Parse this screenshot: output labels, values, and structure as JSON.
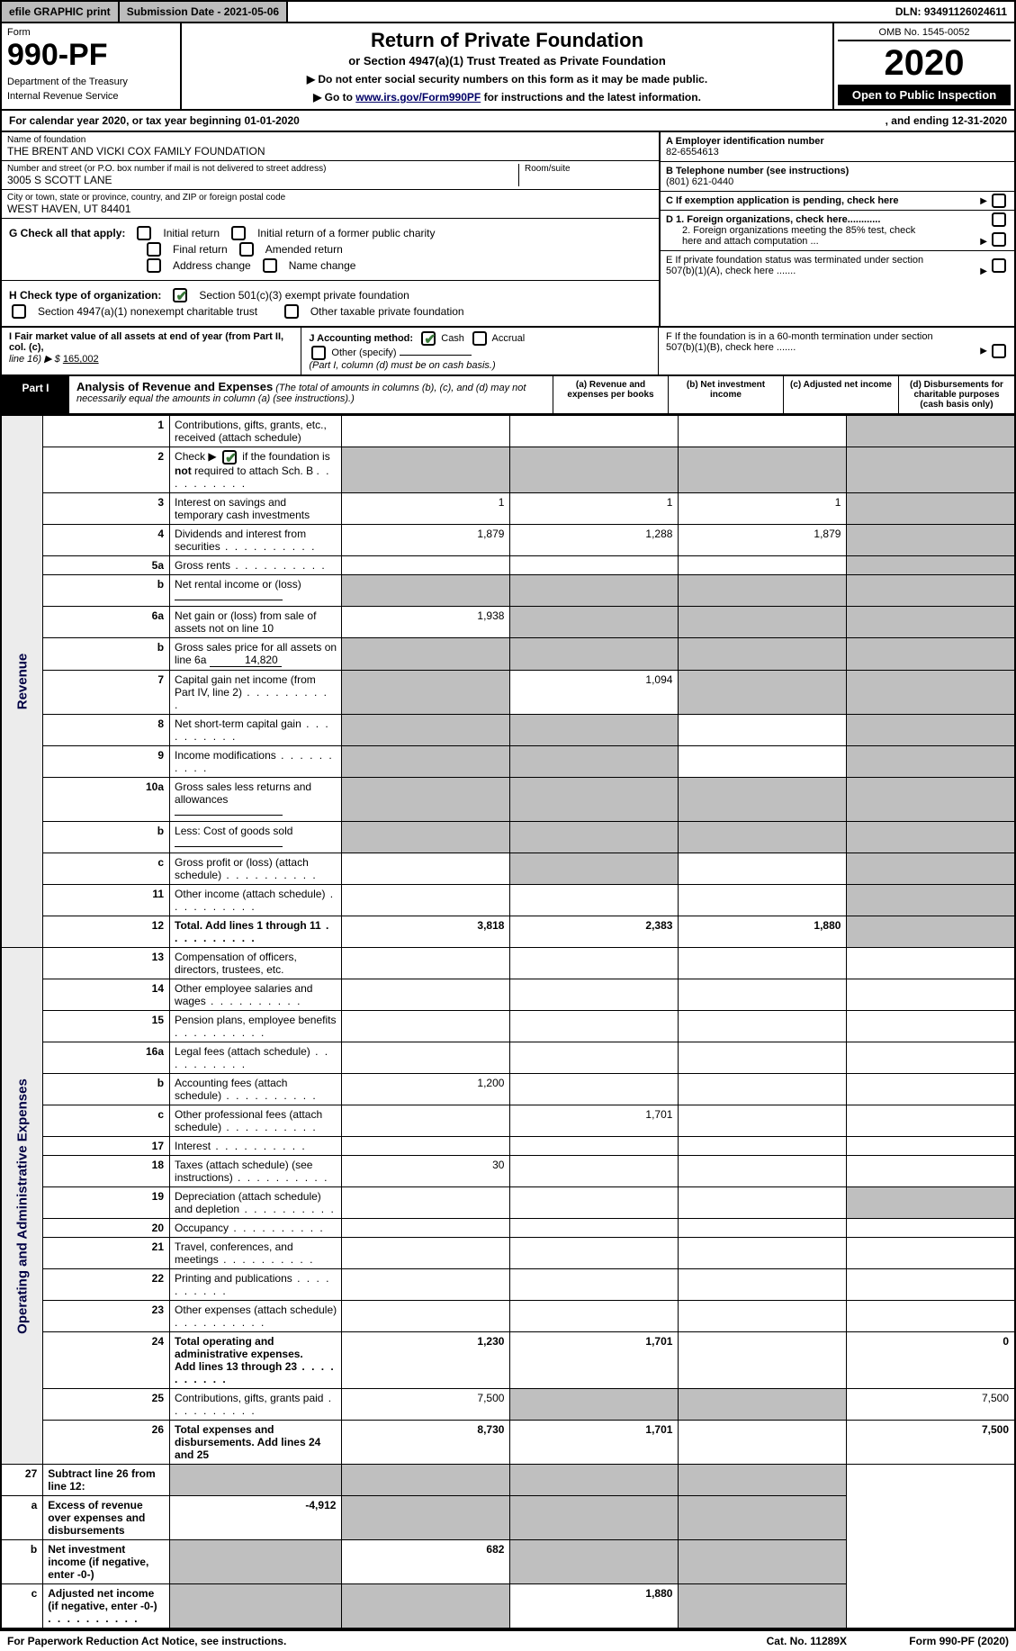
{
  "topbar": {
    "efile": "efile GRAPHIC print",
    "submission_label": "Submission Date - 2021-05-06",
    "dln": "DLN: 93491126024611"
  },
  "header": {
    "form_label": "Form",
    "form_number": "990-PF",
    "dept1": "Department of the Treasury",
    "dept2": "Internal Revenue Service",
    "title": "Return of Private Foundation",
    "subtitle": "or Section 4947(a)(1) Trust Treated as Private Foundation",
    "note1": "▶ Do not enter social security numbers on this form as it may be made public.",
    "note2_pre": "▶ Go to ",
    "note2_link": "www.irs.gov/Form990PF",
    "note2_post": " for instructions and the latest information.",
    "omb": "OMB No. 1545-0052",
    "year": "2020",
    "open": "Open to Public Inspection"
  },
  "calendar": {
    "text_l": "For calendar year 2020, or tax year beginning 01-01-2020",
    "text_r": ", and ending 12-31-2020"
  },
  "foundation": {
    "name_label": "Name of foundation",
    "name": "THE BRENT AND VICKI COX FAMILY FOUNDATION",
    "addr_label": "Number and street (or P.O. box number if mail is not delivered to street address)",
    "addr": "3005 S SCOTT LANE",
    "room_label": "Room/suite",
    "city_label": "City or town, state or province, country, and ZIP or foreign postal code",
    "city": "WEST HAVEN, UT  84401"
  },
  "right_box": {
    "A_label": "A Employer identification number",
    "A_val": "82-6554613",
    "B_label": "B Telephone number (see instructions)",
    "B_val": "(801) 621-0440",
    "C_label": "C If exemption application is pending, check here",
    "D1_label": "D 1. Foreign organizations, check here............",
    "D2_label": "2. Foreign organizations meeting the 85% test, check here and attach computation ...",
    "E_label": "E  If private foundation status was terminated under section 507(b)(1)(A), check here .......",
    "F_label": "F  If the foundation is in a 60-month termination under section 507(b)(1)(B), check here .......",
    "arrow": "▶"
  },
  "G": {
    "label": "G Check all that apply:",
    "opts": [
      "Initial return",
      "Initial return of a former public charity",
      "Final return",
      "Amended return",
      "Address change",
      "Name change"
    ]
  },
  "H": {
    "label": "H Check type of organization:",
    "opt1": "Section 501(c)(3) exempt private foundation",
    "opt2": "Section 4947(a)(1) nonexempt charitable trust",
    "opt3": "Other taxable private foundation"
  },
  "I": {
    "label": "I Fair market value of all assets at end of year (from Part II, col. (c),",
    "line16": "line 16) ▶ $",
    "amount": "165,002"
  },
  "J": {
    "label": "J Accounting method:",
    "cash": "Cash",
    "accrual": "Accrual",
    "other": "Other (specify)",
    "note": "(Part I, column (d) must be on cash basis.)"
  },
  "part1": {
    "label": "Part I",
    "title": "Analysis of Revenue and Expenses",
    "note": "(The total of amounts in columns (b), (c), and (d) may not necessarily equal the amounts in column (a) (see instructions).)",
    "col_a": "(a)   Revenue and expenses per books",
    "col_b": "(b)   Net investment income",
    "col_c": "(c)   Adjusted net income",
    "col_d": "(d)  Disbursements for charitable purposes (cash basis only)"
  },
  "side_labels": {
    "revenue": "Revenue",
    "expenses": "Operating and Administrative Expenses"
  },
  "rows": [
    {
      "n": "1",
      "d": "Contributions, gifts, grants, etc., received (attach schedule)",
      "a": "",
      "b": "",
      "c": "",
      "g": [
        false,
        false,
        false,
        true
      ]
    },
    {
      "n": "2",
      "d": "Check ▶ ☑ if the foundation is not required to attach Sch. B",
      "dots": true,
      "a": "",
      "b": "",
      "c": "",
      "g": [
        true,
        true,
        true,
        true
      ],
      "check": true
    },
    {
      "n": "3",
      "d": "Interest on savings and temporary cash investments",
      "a": "1",
      "b": "1",
      "c": "1",
      "g": [
        false,
        false,
        false,
        true
      ]
    },
    {
      "n": "4",
      "d": "Dividends and interest from securities",
      "dots": true,
      "a": "1,879",
      "b": "1,288",
      "c": "1,879",
      "g": [
        false,
        false,
        false,
        true
      ]
    },
    {
      "n": "5a",
      "d": "Gross rents",
      "dots": true,
      "a": "",
      "b": "",
      "c": "",
      "g": [
        false,
        false,
        false,
        true
      ]
    },
    {
      "n": "b",
      "d": "Net rental income or (loss)",
      "blank": true,
      "a": "",
      "b": "",
      "c": "",
      "g": [
        true,
        true,
        true,
        true
      ]
    },
    {
      "n": "6a",
      "d": "Net gain or (loss) from sale of assets not on line 10",
      "a": "1,938",
      "b": "",
      "c": "",
      "g": [
        false,
        true,
        true,
        true
      ]
    },
    {
      "n": "b",
      "d": "Gross sales price for all assets on line 6a",
      "blankval": "14,820",
      "a": "",
      "b": "",
      "c": "",
      "g": [
        true,
        true,
        true,
        true
      ]
    },
    {
      "n": "7",
      "d": "Capital gain net income (from Part IV, line 2)",
      "dots": true,
      "a": "",
      "b": "1,094",
      "c": "",
      "g": [
        true,
        false,
        true,
        true
      ]
    },
    {
      "n": "8",
      "d": "Net short-term capital gain",
      "dots": true,
      "a": "",
      "b": "",
      "c": "",
      "g": [
        true,
        true,
        false,
        true
      ]
    },
    {
      "n": "9",
      "d": "Income modifications",
      "dots": true,
      "a": "",
      "b": "",
      "c": "",
      "g": [
        true,
        true,
        false,
        true
      ]
    },
    {
      "n": "10a",
      "d": "Gross sales less returns and allowances",
      "blank": true,
      "a": "",
      "b": "",
      "c": "",
      "g": [
        true,
        true,
        true,
        true
      ]
    },
    {
      "n": "b",
      "d": "Less: Cost of goods sold",
      "dots": true,
      "blank": true,
      "a": "",
      "b": "",
      "c": "",
      "g": [
        true,
        true,
        true,
        true
      ]
    },
    {
      "n": "c",
      "d": "Gross profit or (loss) (attach schedule)",
      "dots": true,
      "a": "",
      "b": "",
      "c": "",
      "g": [
        false,
        true,
        false,
        true
      ]
    },
    {
      "n": "11",
      "d": "Other income (attach schedule)",
      "dots": true,
      "a": "",
      "b": "",
      "c": "",
      "g": [
        false,
        false,
        false,
        true
      ]
    },
    {
      "n": "12",
      "d": "Total. Add lines 1 through 11",
      "dots": true,
      "a": "3,818",
      "b": "2,383",
      "c": "1,880",
      "g": [
        false,
        false,
        false,
        true
      ],
      "bold": true
    }
  ],
  "exp_rows": [
    {
      "n": "13",
      "d": "Compensation of officers, directors, trustees, etc.",
      "a": "",
      "b": "",
      "c": "",
      "dd": ""
    },
    {
      "n": "14",
      "d": "Other employee salaries and wages",
      "dots": true,
      "a": "",
      "b": "",
      "c": "",
      "dd": ""
    },
    {
      "n": "15",
      "d": "Pension plans, employee benefits",
      "dots": true,
      "a": "",
      "b": "",
      "c": "",
      "dd": ""
    },
    {
      "n": "16a",
      "d": "Legal fees (attach schedule)",
      "dots": true,
      "a": "",
      "b": "",
      "c": "",
      "dd": ""
    },
    {
      "n": "b",
      "d": "Accounting fees (attach schedule)",
      "dots": true,
      "a": "1,200",
      "b": "",
      "c": "",
      "dd": ""
    },
    {
      "n": "c",
      "d": "Other professional fees (attach schedule)",
      "dots": true,
      "a": "",
      "b": "1,701",
      "c": "",
      "dd": ""
    },
    {
      "n": "17",
      "d": "Interest",
      "dots": true,
      "a": "",
      "b": "",
      "c": "",
      "dd": ""
    },
    {
      "n": "18",
      "d": "Taxes (attach schedule) (see instructions)",
      "dots": true,
      "a": "30",
      "b": "",
      "c": "",
      "dd": ""
    },
    {
      "n": "19",
      "d": "Depreciation (attach schedule) and depletion",
      "dots": true,
      "a": "",
      "b": "",
      "c": "",
      "dd": "",
      "gd": true
    },
    {
      "n": "20",
      "d": "Occupancy",
      "dots": true,
      "a": "",
      "b": "",
      "c": "",
      "dd": ""
    },
    {
      "n": "21",
      "d": "Travel, conferences, and meetings",
      "dots": true,
      "a": "",
      "b": "",
      "c": "",
      "dd": ""
    },
    {
      "n": "22",
      "d": "Printing and publications",
      "dots": true,
      "a": "",
      "b": "",
      "c": "",
      "dd": ""
    },
    {
      "n": "23",
      "d": "Other expenses (attach schedule)",
      "dots": true,
      "a": "",
      "b": "",
      "c": "",
      "dd": ""
    },
    {
      "n": "24",
      "d": "Total operating and administrative expenses. Add lines 13 through 23",
      "dots": true,
      "a": "1,230",
      "b": "1,701",
      "c": "",
      "dd": "0",
      "bold": true
    },
    {
      "n": "25",
      "d": "Contributions, gifts, grants paid",
      "dots": true,
      "a": "7,500",
      "b": "",
      "c": "",
      "dd": "7,500",
      "gb": true,
      "gc": true
    },
    {
      "n": "26",
      "d": "Total expenses and disbursements. Add lines 24 and 25",
      "a": "8,730",
      "b": "1,701",
      "c": "",
      "dd": "7,500",
      "bold": true
    }
  ],
  "net_rows": [
    {
      "n": "27",
      "d": "Subtract line 26 from line 12:",
      "a": "",
      "b": "",
      "c": "",
      "dd": "",
      "ga": true,
      "gb": true,
      "gc": true,
      "gd": true
    },
    {
      "n": "a",
      "d": "Excess of revenue over expenses and disbursements",
      "a": "-4,912",
      "b": "",
      "c": "",
      "dd": "",
      "bold": true,
      "gb": true,
      "gc": true,
      "gd": true
    },
    {
      "n": "b",
      "d": "Net investment income (if negative, enter -0-)",
      "a": "",
      "b": "682",
      "c": "",
      "dd": "",
      "bold": true,
      "ga": true,
      "gc": true,
      "gd": true
    },
    {
      "n": "c",
      "d": "Adjusted net income (if negative, enter -0-)",
      "dots": true,
      "a": "",
      "b": "",
      "c": "1,880",
      "dd": "",
      "bold": true,
      "ga": true,
      "gb": true,
      "gd": true
    }
  ],
  "footer": {
    "left": "For Paperwork Reduction Act Notice, see instructions.",
    "mid": "Cat. No. 11289X",
    "right": "Form 990-PF (2020)"
  },
  "colors": {
    "grey": "#bfbfbf",
    "sidegrey": "#ececec",
    "link": "#000066",
    "check": "#3a7a3a"
  }
}
